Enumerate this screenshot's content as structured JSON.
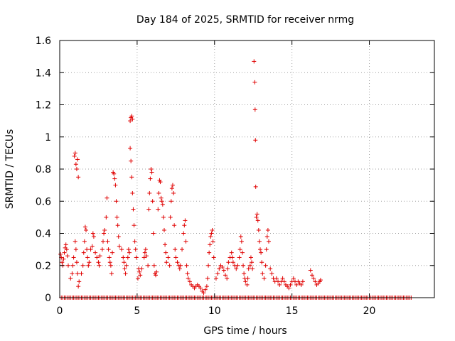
{
  "chart_data": {
    "type": "scatter",
    "title": "Day 184 of 2025, SRMTID for receiver nrmg",
    "xlabel": "GPS time / hours",
    "ylabel": "SRMTID / TECUs",
    "xlim": [
      0,
      24.2
    ],
    "ylim": [
      0,
      1.6
    ],
    "xticks": [
      0,
      5,
      10,
      15,
      20
    ],
    "xtick_labels": [
      "0",
      "5",
      "10",
      "15",
      "20"
    ],
    "yticks": [
      0,
      0.2,
      0.4,
      0.6,
      0.8,
      1.0,
      1.2,
      1.4,
      1.6
    ],
    "ytick_labels": [
      "0",
      "0.2",
      "0.4",
      "0.6",
      "0.8",
      "1",
      "1.2",
      "1.4",
      "1.6"
    ],
    "grid": true,
    "marker": "+",
    "marker_color": "#e00000",
    "series": [
      {
        "name": "SRMTID",
        "points": [
          [
            0.05,
            0.27
          ],
          [
            0.1,
            0.25
          ],
          [
            0.15,
            0.22
          ],
          [
            0.2,
            0.2
          ],
          [
            0.25,
            0.24
          ],
          [
            0.3,
            0.28
          ],
          [
            0.35,
            0.31
          ],
          [
            0.4,
            0.33
          ],
          [
            0.45,
            0.3
          ],
          [
            0.5,
            0.26
          ],
          [
            0.55,
            0.2
          ],
          [
            0.7,
            0.12
          ],
          [
            0.8,
            0.15
          ],
          [
            0.85,
            0.2
          ],
          [
            0.9,
            0.25
          ],
          [
            0.95,
            0.88
          ],
          [
            1.0,
            0.9
          ],
          [
            1.05,
            0.83
          ],
          [
            1.1,
            0.8
          ],
          [
            1.15,
            0.86
          ],
          [
            1.2,
            0.75
          ],
          [
            1.0,
            0.35
          ],
          [
            1.05,
            0.3
          ],
          [
            1.1,
            0.22
          ],
          [
            1.15,
            0.15
          ],
          [
            1.2,
            0.07
          ],
          [
            1.25,
            0.1
          ],
          [
            1.4,
            0.15
          ],
          [
            1.5,
            0.2
          ],
          [
            1.55,
            0.28
          ],
          [
            1.6,
            0.35
          ],
          [
            1.65,
            0.44
          ],
          [
            1.7,
            0.42
          ],
          [
            1.75,
            0.3
          ],
          [
            1.8,
            0.25
          ],
          [
            1.85,
            0.2
          ],
          [
            1.9,
            0.22
          ],
          [
            2.0,
            0.3
          ],
          [
            2.1,
            0.32
          ],
          [
            2.15,
            0.4
          ],
          [
            2.2,
            0.38
          ],
          [
            2.3,
            0.28
          ],
          [
            2.4,
            0.25
          ],
          [
            2.5,
            0.22
          ],
          [
            2.55,
            0.2
          ],
          [
            2.6,
            0.26
          ],
          [
            2.75,
            0.3
          ],
          [
            2.8,
            0.35
          ],
          [
            2.85,
            0.4
          ],
          [
            2.9,
            0.42
          ],
          [
            3.0,
            0.5
          ],
          [
            3.05,
            0.62
          ],
          [
            3.1,
            0.35
          ],
          [
            3.15,
            0.3
          ],
          [
            3.2,
            0.25
          ],
          [
            3.25,
            0.22
          ],
          [
            3.3,
            0.2
          ],
          [
            3.35,
            0.15
          ],
          [
            3.4,
            0.28
          ],
          [
            3.45,
            0.78
          ],
          [
            3.5,
            0.77
          ],
          [
            3.55,
            0.74
          ],
          [
            3.6,
            0.7
          ],
          [
            3.65,
            0.6
          ],
          [
            3.7,
            0.5
          ],
          [
            3.75,
            0.45
          ],
          [
            3.8,
            0.38
          ],
          [
            3.85,
            0.32
          ],
          [
            4.0,
            0.3
          ],
          [
            4.1,
            0.25
          ],
          [
            4.15,
            0.22
          ],
          [
            4.2,
            0.18
          ],
          [
            4.25,
            0.15
          ],
          [
            4.3,
            0.2
          ],
          [
            4.4,
            0.25
          ],
          [
            4.45,
            0.3
          ],
          [
            4.5,
            0.28
          ],
          [
            4.55,
            1.1
          ],
          [
            4.6,
            1.12
          ],
          [
            4.65,
            1.13
          ],
          [
            4.7,
            1.11
          ],
          [
            4.55,
            0.93
          ],
          [
            4.6,
            0.85
          ],
          [
            4.65,
            0.75
          ],
          [
            4.7,
            0.65
          ],
          [
            4.75,
            0.55
          ],
          [
            4.8,
            0.45
          ],
          [
            4.85,
            0.35
          ],
          [
            4.9,
            0.3
          ],
          [
            4.95,
            0.25
          ],
          [
            5.05,
            0.12
          ],
          [
            5.1,
            0.18
          ],
          [
            5.15,
            0.16
          ],
          [
            5.2,
            0.14
          ],
          [
            5.3,
            0.18
          ],
          [
            5.45,
            0.25
          ],
          [
            5.5,
            0.28
          ],
          [
            5.55,
            0.3
          ],
          [
            5.6,
            0.26
          ],
          [
            5.7,
            0.2
          ],
          [
            5.75,
            0.55
          ],
          [
            5.8,
            0.65
          ],
          [
            5.85,
            0.74
          ],
          [
            5.9,
            0.8
          ],
          [
            5.95,
            0.78
          ],
          [
            6.0,
            0.6
          ],
          [
            6.05,
            0.4
          ],
          [
            6.1,
            0.2
          ],
          [
            6.15,
            0.15
          ],
          [
            6.2,
            0.14
          ],
          [
            6.25,
            0.16
          ],
          [
            6.35,
            0.55
          ],
          [
            6.4,
            0.65
          ],
          [
            6.45,
            0.73
          ],
          [
            6.5,
            0.72
          ],
          [
            6.55,
            0.62
          ],
          [
            6.6,
            0.6
          ],
          [
            6.65,
            0.58
          ],
          [
            6.7,
            0.5
          ],
          [
            6.75,
            0.42
          ],
          [
            6.8,
            0.33
          ],
          [
            6.85,
            0.28
          ],
          [
            6.9,
            0.22
          ],
          [
            7.0,
            0.25
          ],
          [
            7.1,
            0.2
          ],
          [
            7.15,
            0.5
          ],
          [
            7.2,
            0.6
          ],
          [
            7.25,
            0.68
          ],
          [
            7.3,
            0.7
          ],
          [
            7.35,
            0.65
          ],
          [
            7.4,
            0.45
          ],
          [
            7.45,
            0.3
          ],
          [
            7.5,
            0.25
          ],
          [
            7.6,
            0.22
          ],
          [
            7.7,
            0.2
          ],
          [
            7.75,
            0.18
          ],
          [
            7.8,
            0.2
          ],
          [
            7.9,
            0.3
          ],
          [
            8.0,
            0.4
          ],
          [
            8.05,
            0.45
          ],
          [
            8.1,
            0.48
          ],
          [
            8.15,
            0.35
          ],
          [
            8.2,
            0.2
          ],
          [
            8.25,
            0.15
          ],
          [
            8.3,
            0.12
          ],
          [
            8.4,
            0.1
          ],
          [
            8.5,
            0.08
          ],
          [
            8.6,
            0.07
          ],
          [
            8.7,
            0.06
          ],
          [
            8.8,
            0.07
          ],
          [
            8.9,
            0.08
          ],
          [
            9.0,
            0.07
          ],
          [
            9.1,
            0.06
          ],
          [
            9.2,
            0.04
          ],
          [
            9.3,
            0.03
          ],
          [
            9.4,
            0.05
          ],
          [
            9.5,
            0.07
          ],
          [
            9.55,
            0.12
          ],
          [
            9.6,
            0.2
          ],
          [
            9.65,
            0.28
          ],
          [
            9.7,
            0.33
          ],
          [
            9.75,
            0.38
          ],
          [
            9.8,
            0.4
          ],
          [
            9.85,
            0.42
          ],
          [
            9.9,
            0.35
          ],
          [
            9.95,
            0.25
          ],
          [
            10.1,
            0.12
          ],
          [
            10.2,
            0.15
          ],
          [
            10.3,
            0.18
          ],
          [
            10.4,
            0.2
          ],
          [
            10.5,
            0.19
          ],
          [
            10.6,
            0.17
          ],
          [
            10.7,
            0.14
          ],
          [
            10.8,
            0.12
          ],
          [
            10.85,
            0.18
          ],
          [
            10.9,
            0.22
          ],
          [
            11.0,
            0.25
          ],
          [
            11.1,
            0.28
          ],
          [
            11.15,
            0.25
          ],
          [
            11.2,
            0.22
          ],
          [
            11.3,
            0.2
          ],
          [
            11.4,
            0.18
          ],
          [
            11.5,
            0.2
          ],
          [
            11.6,
            0.25
          ],
          [
            11.65,
            0.3
          ],
          [
            11.7,
            0.38
          ],
          [
            11.75,
            0.35
          ],
          [
            11.8,
            0.28
          ],
          [
            11.85,
            0.2
          ],
          [
            11.9,
            0.15
          ],
          [
            11.95,
            0.12
          ],
          [
            12.0,
            0.1
          ],
          [
            12.1,
            0.08
          ],
          [
            12.15,
            0.12
          ],
          [
            12.2,
            0.18
          ],
          [
            12.3,
            0.2
          ],
          [
            12.35,
            0.25
          ],
          [
            12.4,
            0.22
          ],
          [
            12.45,
            0.18
          ],
          [
            12.55,
            1.47
          ],
          [
            12.6,
            1.34
          ],
          [
            12.62,
            1.17
          ],
          [
            12.64,
            0.98
          ],
          [
            12.66,
            0.69
          ],
          [
            12.7,
            0.5
          ],
          [
            12.75,
            0.52
          ],
          [
            12.8,
            0.48
          ],
          [
            12.85,
            0.42
          ],
          [
            12.9,
            0.35
          ],
          [
            12.95,
            0.3
          ],
          [
            13.0,
            0.28
          ],
          [
            13.05,
            0.22
          ],
          [
            13.1,
            0.15
          ],
          [
            13.2,
            0.12
          ],
          [
            13.3,
            0.2
          ],
          [
            13.35,
            0.3
          ],
          [
            13.4,
            0.38
          ],
          [
            13.45,
            0.42
          ],
          [
            13.5,
            0.35
          ],
          [
            13.6,
            0.18
          ],
          [
            13.7,
            0.15
          ],
          [
            13.8,
            0.12
          ],
          [
            13.9,
            0.1
          ],
          [
            14.0,
            0.12
          ],
          [
            14.1,
            0.1
          ],
          [
            14.2,
            0.08
          ],
          [
            14.3,
            0.1
          ],
          [
            14.4,
            0.12
          ],
          [
            14.5,
            0.1
          ],
          [
            14.6,
            0.08
          ],
          [
            14.7,
            0.07
          ],
          [
            14.8,
            0.06
          ],
          [
            14.9,
            0.08
          ],
          [
            15.0,
            0.1
          ],
          [
            15.1,
            0.12
          ],
          [
            15.2,
            0.1
          ],
          [
            15.3,
            0.08
          ],
          [
            15.4,
            0.1
          ],
          [
            15.5,
            0.09
          ],
          [
            15.6,
            0.08
          ],
          [
            15.7,
            0.1
          ],
          [
            16.2,
            0.17
          ],
          [
            16.3,
            0.14
          ],
          [
            16.4,
            0.12
          ],
          [
            16.5,
            0.1
          ],
          [
            16.6,
            0.08
          ],
          [
            16.7,
            0.09
          ],
          [
            16.8,
            0.1
          ],
          [
            16.85,
            0.11
          ]
        ]
      },
      {
        "name": "baseline",
        "x_range": [
          0.1,
          22.7
        ],
        "x_step": 0.1,
        "y": 0
      }
    ]
  }
}
